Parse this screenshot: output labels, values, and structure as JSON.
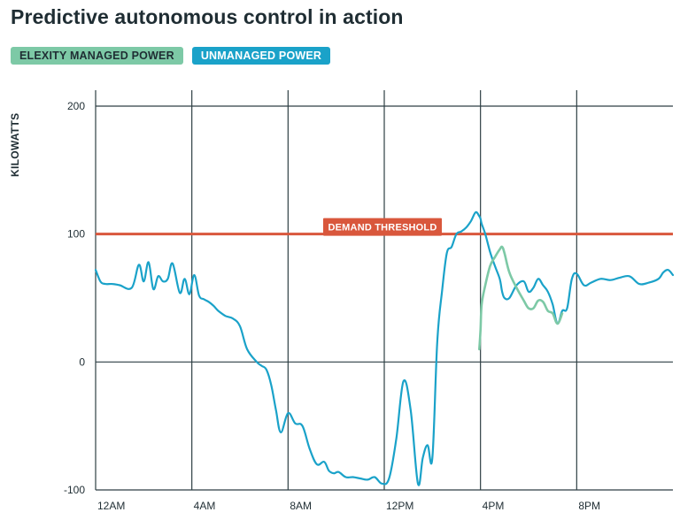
{
  "colors": {
    "managed": "#7dc9a6",
    "unmanaged": "#1aa2c9",
    "threshold": "#d9573c",
    "grid": "#2e3f44"
  },
  "chart_data": {
    "type": "line",
    "title": "Predictive autonomous control in action",
    "ylabel": "KILOWATTS",
    "ylim": [
      -100,
      200
    ],
    "xlim": [
      0,
      24
    ],
    "xticks": [
      0,
      4,
      8,
      12,
      16,
      20
    ],
    "xtick_labels": [
      "12AM",
      "4AM",
      "8AM",
      "12PM",
      "4PM",
      "8PM"
    ],
    "yticks": [
      -100,
      0,
      100,
      200
    ],
    "ytick_labels": [
      "-100",
      "0",
      "100",
      "200"
    ],
    "grid": true,
    "legend": [
      "ELEXITY MANAGED POWER",
      "UNMANAGED POWER"
    ],
    "threshold": {
      "label": "DEMAND THRESHOLD",
      "value": 100
    },
    "series": [
      {
        "name": "UNMANAGED POWER",
        "x": [
          0,
          0.2,
          0.4,
          0.7,
          1.0,
          1.5,
          1.8,
          2.0,
          2.2,
          2.4,
          2.6,
          2.8,
          3.0,
          3.2,
          3.5,
          3.7,
          3.9,
          4.1,
          4.3,
          4.5,
          4.7,
          4.9,
          5.1,
          5.4,
          5.7,
          6.0,
          6.3,
          6.7,
          6.9,
          7.1,
          7.3,
          7.5,
          7.7,
          8.0,
          8.3,
          8.6,
          8.9,
          9.2,
          9.5,
          9.7,
          9.9,
          10.1,
          10.4,
          10.7,
          11.0,
          11.3,
          11.6,
          11.9,
          12.2,
          12.5,
          12.8,
          13.1,
          13.4,
          13.6,
          13.8,
          14.0,
          14.2,
          14.4,
          14.6,
          14.8,
          15.0,
          15.2,
          15.4,
          15.6,
          15.8,
          15.95,
          16.0,
          16.05,
          16.2,
          16.4,
          16.6,
          16.8,
          16.9,
          17.0,
          17.2,
          17.5,
          17.8,
          18.0,
          18.2,
          18.4,
          18.6,
          18.8,
          19.0,
          19.2,
          19.4,
          19.6,
          19.8,
          20.0,
          20.3,
          20.6,
          21.0,
          21.4,
          21.8,
          22.2,
          22.6,
          23.0,
          23.4,
          23.6,
          23.8,
          24.0
        ],
        "values": [
          72,
          63,
          61,
          61,
          60,
          58,
          76,
          63,
          78,
          57,
          67,
          63,
          65,
          77,
          54,
          65,
          53,
          68,
          52,
          49,
          47,
          44,
          40,
          36,
          34,
          28,
          10,
          0,
          -3,
          -6,
          -18,
          -38,
          -55,
          -40,
          -48,
          -50,
          -68,
          -80,
          -78,
          -85,
          -87,
          -86,
          -90,
          -90,
          -91,
          -92,
          -90,
          -95,
          -91,
          -60,
          -15,
          -38,
          -95,
          -75,
          -65,
          -75,
          15,
          55,
          85,
          90,
          100,
          102,
          105,
          110,
          117,
          114,
          112,
          108,
          100,
          86,
          75,
          65,
          55,
          50,
          50,
          60,
          63,
          55,
          58,
          65,
          60,
          55,
          45,
          30,
          40,
          42,
          65,
          69,
          60,
          62,
          65,
          64,
          66,
          67,
          61,
          62,
          65,
          70,
          72,
          68
        ]
      },
      {
        "name": "ELEXITY MANAGED POWER",
        "x": [
          15.95,
          16.0,
          16.05,
          16.2,
          16.4,
          16.6,
          16.8,
          16.9,
          17.0,
          17.2,
          17.5,
          17.8,
          18.0,
          18.2,
          18.4,
          18.6,
          18.8,
          19.0,
          19.2,
          19.4
        ],
        "values": [
          10,
          25,
          45,
          60,
          75,
          82,
          88,
          90,
          85,
          70,
          58,
          48,
          42,
          42,
          48,
          47,
          40,
          38,
          30,
          38
        ]
      }
    ]
  }
}
